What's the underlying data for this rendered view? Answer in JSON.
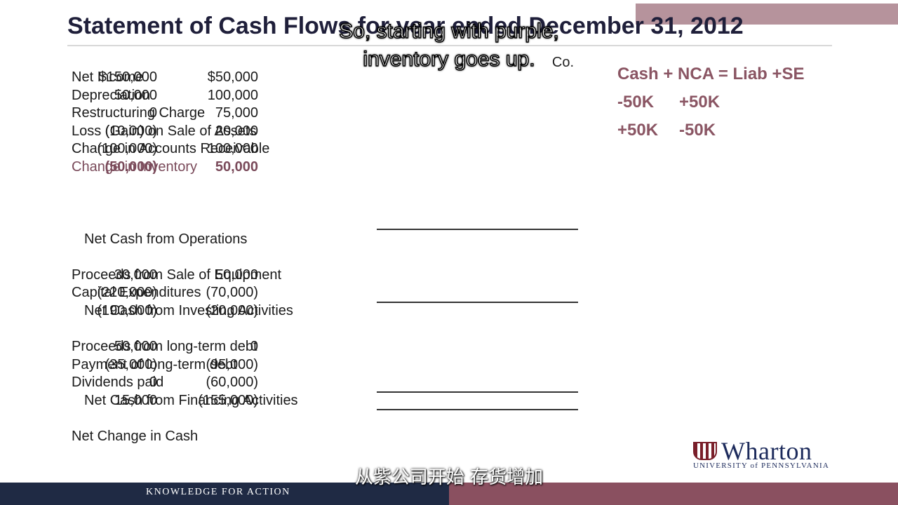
{
  "slide": {
    "title": "Statement of Cash Flows for year ended December 31, 2012",
    "col2_header": "Co."
  },
  "rows": {
    "net_income": {
      "label": "Net Income",
      "v1": "$150,000",
      "v2": "$50,000"
    },
    "depreciation": {
      "label": "Depreciation",
      "v1": "50,000",
      "v2": "100,000"
    },
    "restructuring": {
      "label": "Restructuring Charge",
      "v1": "0",
      "v2": "75,000"
    },
    "loss_gain": {
      "label": "Loss (Gain) on Sale of Assets",
      "v1": "(10,000)",
      "v2": "20,000"
    },
    "change_ar": {
      "label": "Change in Accounts Receivable",
      "v1": "(100,000)",
      "v2": "100,000"
    },
    "change_inv": {
      "label": "Change in Inventory",
      "v1": "(50,000)",
      "v2": "50,000"
    },
    "net_ops": {
      "label": "Net Cash from Operations"
    },
    "proceeds_equip": {
      "label": "Proceeds from Sale of Equipment",
      "v1": "30,000",
      "v2": "50,000"
    },
    "capex": {
      "label": "Capital Expenditures",
      "v1": "(220,000)",
      "v2": "(70,000)"
    },
    "net_invest": {
      "label": "Net Cash from Investing Activities",
      "v1": "(190,000)",
      "v2": "(20,000)"
    },
    "proceeds_debt": {
      "label": "Proceeds from long-term debt",
      "v1": "50,000",
      "v2": "0"
    },
    "payment_debt": {
      "label": "Payment of long-term debt",
      "v1": "(35,000)",
      "v2": "(95,000)"
    },
    "dividends": {
      "label": "Dividends paid",
      "v1": "0",
      "v2": "(60,000)"
    },
    "net_fin": {
      "label": "Net Cash from Financing Activities",
      "v1": "15,000",
      "v2": "(155,000)"
    },
    "net_change": {
      "label": "Net Change in Cash"
    }
  },
  "equation": {
    "line1": "Cash + NCA = Liab +SE",
    "line2a": "-50K",
    "line2b": "+50K",
    "line3a": "+50K",
    "line3b": "-50K"
  },
  "subtitles": {
    "en_line1": "So, starting with purple,",
    "en_line2": "inventory goes up.",
    "cn": "从紫公司开始 存货增加"
  },
  "branding": {
    "logo_name": "Wharton",
    "logo_sub": "UNIVERSITY of PENNSYLVANIA",
    "footer": "KNOWLEDGE FOR ACTION"
  },
  "colors": {
    "accent": "#8a5563",
    "footer_navy": "#1f2a44",
    "footer_maroon": "#8a5060"
  }
}
